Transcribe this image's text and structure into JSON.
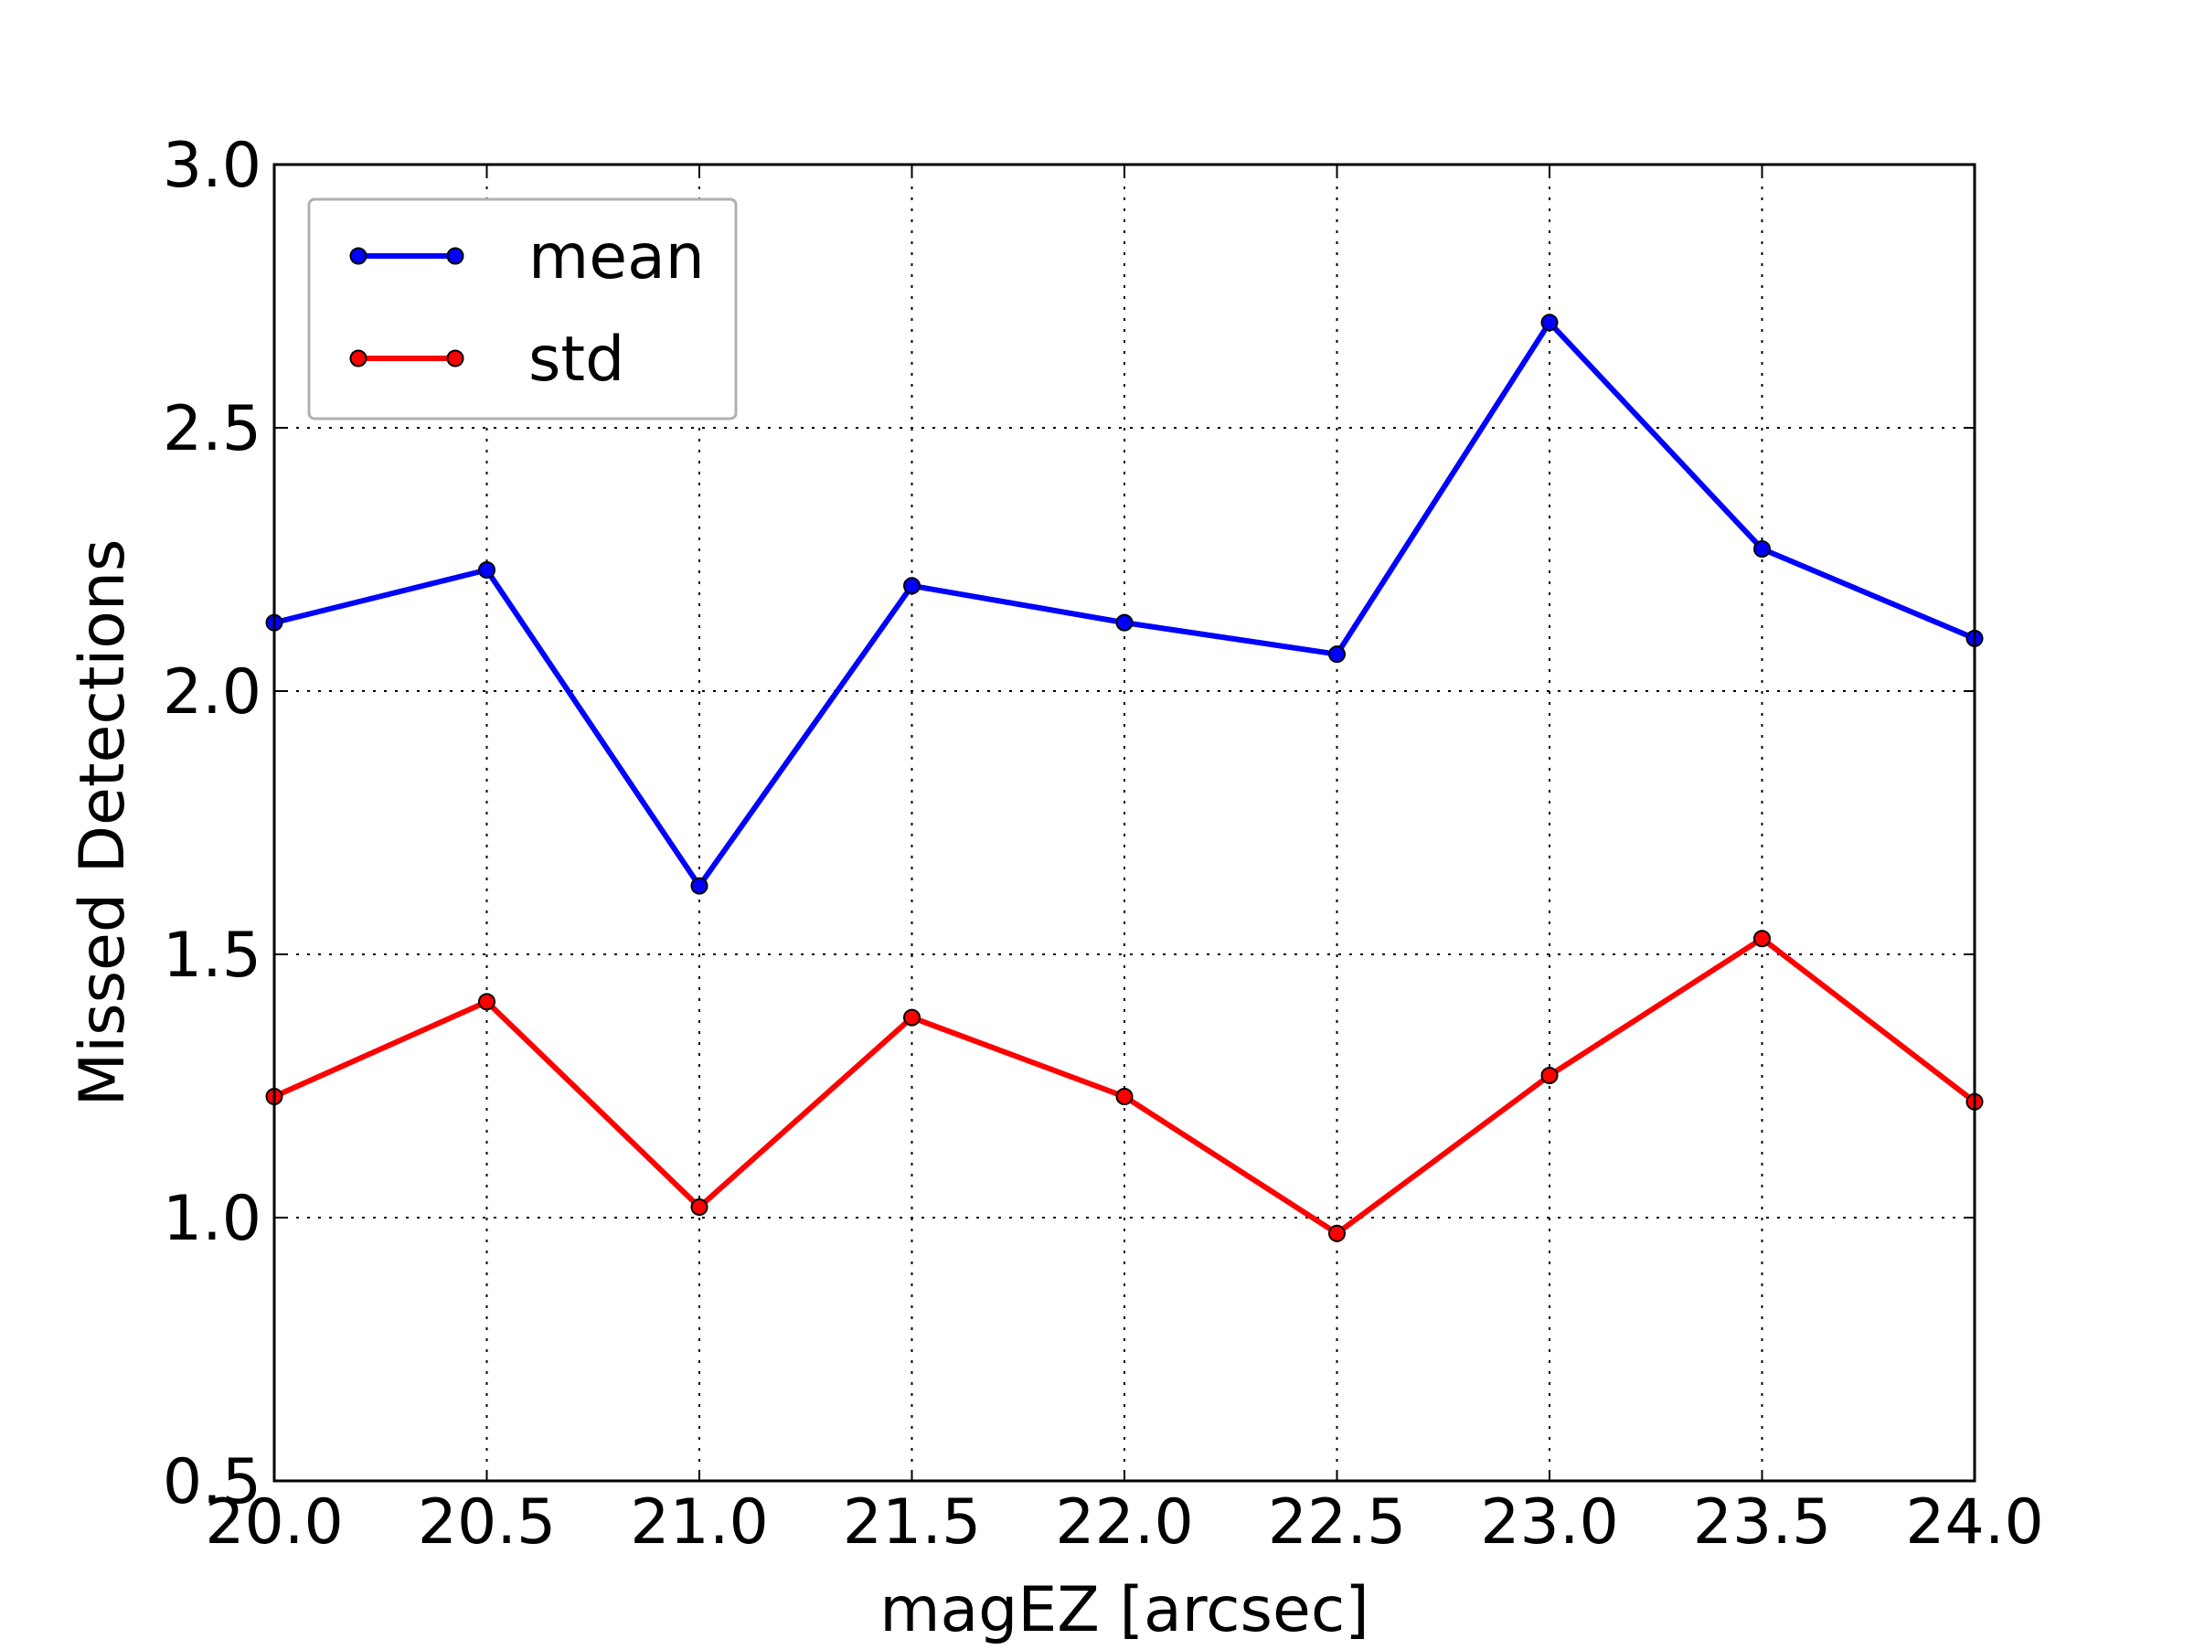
{
  "chart_data": {
    "type": "line",
    "title": "",
    "xlabel": "magEZ [arcsec]",
    "ylabel": "Missed Detections",
    "xlim": [
      20.0,
      24.0
    ],
    "ylim": [
      0.5,
      3.0
    ],
    "xticks": [
      "20.0",
      "20.5",
      "21.0",
      "21.5",
      "22.0",
      "22.5",
      "23.0",
      "23.5",
      "24.0"
    ],
    "yticks": [
      "0.5",
      "1.0",
      "1.5",
      "2.0",
      "2.5",
      "3.0"
    ],
    "grid": true,
    "legend_position": "top-left",
    "x": [
      20.0,
      20.5,
      21.0,
      21.5,
      22.0,
      22.5,
      23.0,
      23.5,
      24.0
    ],
    "series": [
      {
        "name": "mean",
        "color": "#0000ff",
        "values": [
          2.13,
          2.23,
          1.63,
          2.2,
          2.13,
          2.07,
          2.7,
          2.27,
          2.1
        ]
      },
      {
        "name": "std",
        "color": "#ff0000",
        "values": [
          1.23,
          1.41,
          1.02,
          1.38,
          1.23,
          0.97,
          1.27,
          1.53,
          1.22
        ]
      }
    ]
  }
}
